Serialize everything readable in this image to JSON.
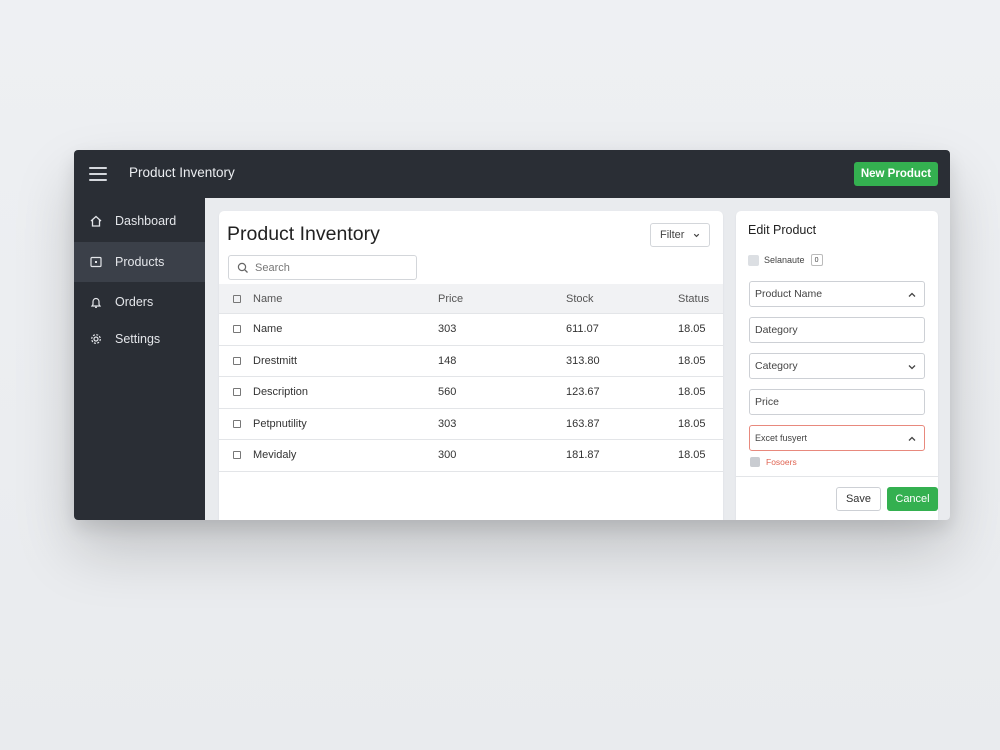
{
  "colors": {
    "topbar": "#2a2e35",
    "sidebar_active": "#3b4049",
    "accent_green": "#34b050",
    "error_red": "#e06452"
  },
  "header": {
    "title": "Product Inventory",
    "new_button": "New Product"
  },
  "sidebar": {
    "items": [
      {
        "label": "Dashboard",
        "icon": "home-icon"
      },
      {
        "label": "Products",
        "icon": "box-icon",
        "active": true
      },
      {
        "label": "Orders",
        "icon": "bell-icon"
      },
      {
        "label": "Settings",
        "icon": "gear-icon"
      }
    ]
  },
  "main": {
    "title": "Product Inventory",
    "filter_label": "Filter",
    "search_placeholder": "Search",
    "columns": [
      "Name",
      "Price",
      "Stock",
      "Status"
    ],
    "rows": [
      {
        "name": "Name",
        "price": "303",
        "stock": "611.07",
        "status": "18.05"
      },
      {
        "name": "Drestmitt",
        "price": "148",
        "stock": "313.80",
        "status": "18.05"
      },
      {
        "name": "Description",
        "price": "560",
        "stock": "123.67",
        "status": "18.05"
      },
      {
        "name": "Petpnutility",
        "price": "303",
        "stock": "163.87",
        "status": "18.05"
      },
      {
        "name": "Mevidaly",
        "price": "300",
        "stock": "181.87",
        "status": "18.05"
      }
    ]
  },
  "edit": {
    "title": "Edit Product",
    "select_label": "Selanaute",
    "select_tag": "0",
    "fields": [
      {
        "value": "Product Name",
        "chevron": "up"
      },
      {
        "value": "Dategory",
        "chevron": ""
      },
      {
        "value": "Category",
        "chevron": "down"
      },
      {
        "value": "Price",
        "chevron": ""
      },
      {
        "value": "Excet fusyert",
        "chevron": "up",
        "error": true
      }
    ],
    "error_label": "Fosoers",
    "save_label": "Save",
    "cancel_label": "Cancel"
  }
}
